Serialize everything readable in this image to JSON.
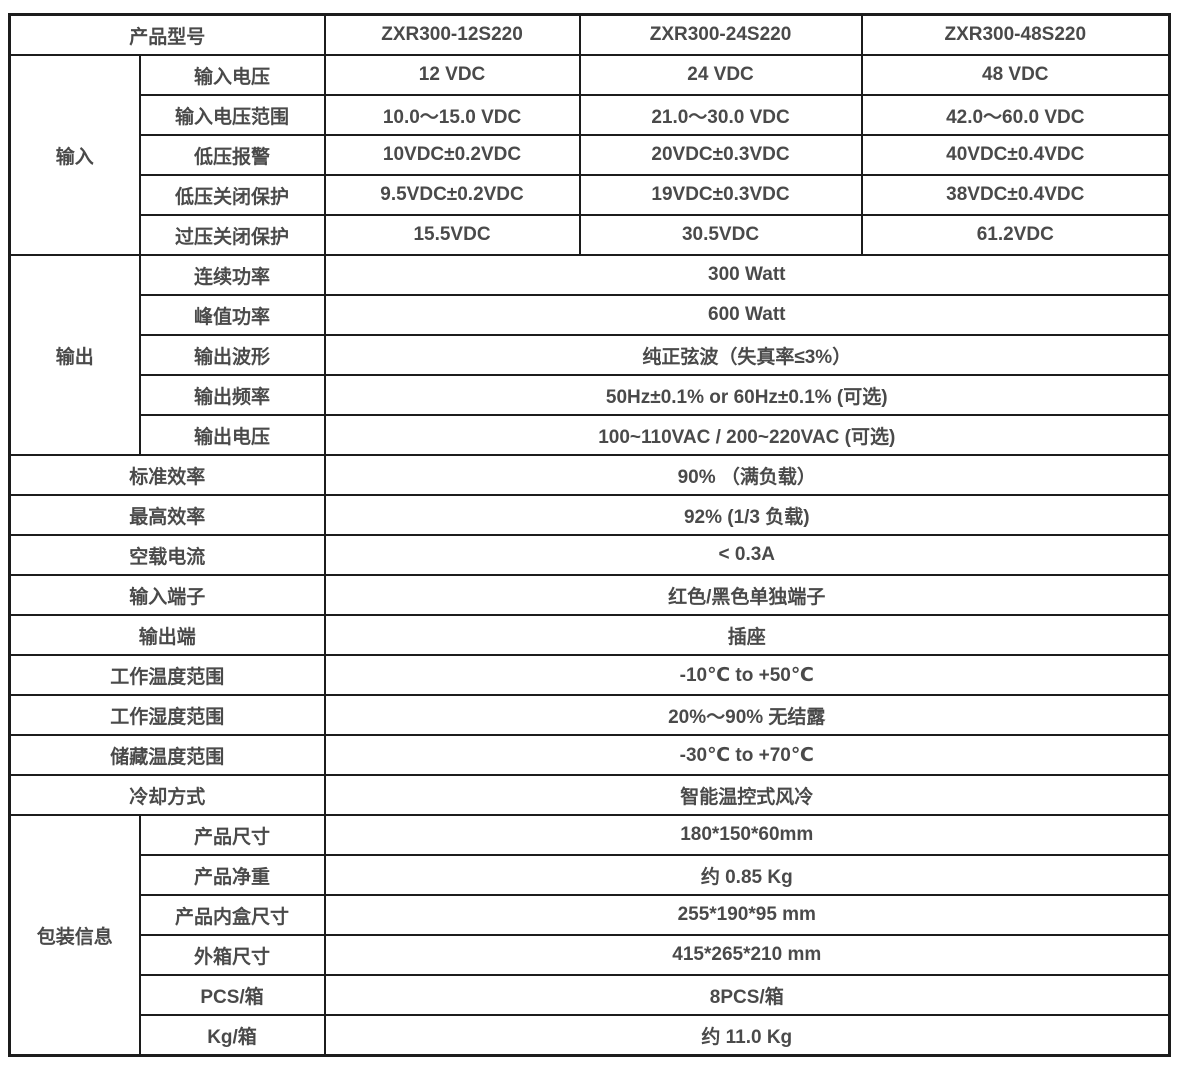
{
  "table": {
    "header": {
      "label": "产品型号",
      "models": [
        "ZXR300-12S220",
        "ZXR300-24S220",
        "ZXR300-48S220"
      ]
    },
    "input": {
      "group": "输入",
      "rows": [
        {
          "label": "输入电压",
          "v1": "12 VDC",
          "v2": "24 VDC",
          "v3": "48 VDC"
        },
        {
          "label": "输入电压范围",
          "v1": "10.0～15.0 VDC",
          "v2": "21.0～30.0 VDC",
          "v3": "42.0～60.0 VDC"
        },
        {
          "label": "低压报警",
          "v1": "10VDC±0.2VDC",
          "v2": "20VDC±0.3VDC",
          "v3": "40VDC±0.4VDC"
        },
        {
          "label": "低压关闭保护",
          "v1": "9.5VDC±0.2VDC",
          "v2": "19VDC±0.3VDC",
          "v3": "38VDC±0.4VDC"
        },
        {
          "label": "过压关闭保护",
          "v1": "15.5VDC",
          "v2": "30.5VDC",
          "v3": "61.2VDC"
        }
      ]
    },
    "output": {
      "group": "输出",
      "rows": [
        {
          "label": "连续功率",
          "value": "300 Watt"
        },
        {
          "label": "峰值功率",
          "value": "600 Watt"
        },
        {
          "label": "输出波形",
          "value": "纯正弦波（失真率≤3%）"
        },
        {
          "label": "输出频率",
          "value": "50Hz±0.1% or 60Hz±0.1% (可选)"
        },
        {
          "label": "输出电压",
          "value": "100~110VAC / 200~220VAC (可选)"
        }
      ]
    },
    "general": [
      {
        "label": "标准效率",
        "value": "90% （满负载）"
      },
      {
        "label": "最高效率",
        "value": "92% (1/3 负载)"
      },
      {
        "label": "空载电流",
        "value": "< 0.3A"
      },
      {
        "label": "输入端子",
        "value": "红色/黑色单独端子"
      },
      {
        "label": "输出端",
        "value": "插座"
      },
      {
        "label": "工作温度范围",
        "value": "-10℃ to +50℃"
      },
      {
        "label": "工作湿度范围",
        "value": "20%～90% 无结露"
      },
      {
        "label": "储藏温度范围",
        "value": "-30℃ to +70℃"
      },
      {
        "label": "冷却方式",
        "value": "智能温控式风冷"
      }
    ],
    "packaging": {
      "group": "包装信息",
      "rows": [
        {
          "label": "产品尺寸",
          "value": "180*150*60mm"
        },
        {
          "label": "产品净重",
          "value": "约  0.85 Kg"
        },
        {
          "label": "产品内盒尺寸",
          "value": "255*190*95 mm"
        },
        {
          "label": "外箱尺寸",
          "value": "415*265*210 mm"
        },
        {
          "label": "PCS/箱",
          "value": "8PCS/箱"
        },
        {
          "label": "Kg/箱",
          "value": "约  11.0 Kg"
        }
      ]
    },
    "colors": {
      "border": "#1c1c1c",
      "text": "#4a4a4a",
      "background": "#ffffff"
    }
  }
}
